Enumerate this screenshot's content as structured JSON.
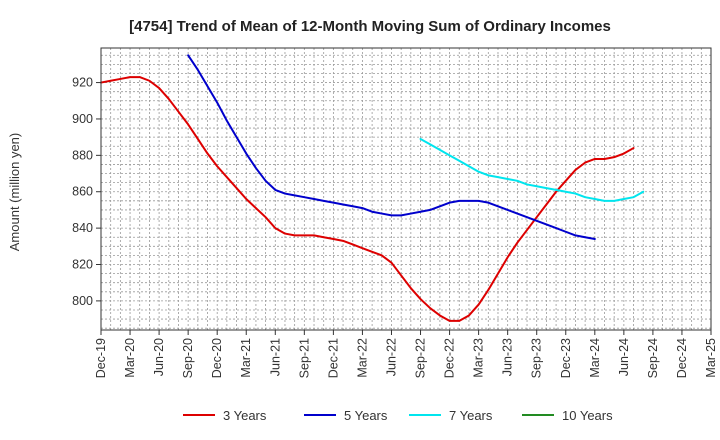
{
  "chart_data": {
    "type": "line",
    "title": "[4754]  Trend of Mean of 12-Month Moving Sum of Ordinary Incomes",
    "xlabel": "",
    "ylabel": "Amount (million yen)",
    "x_ticks": [
      "Dec-19",
      "Mar-20",
      "Jun-20",
      "Sep-20",
      "Dec-20",
      "Mar-21",
      "Jun-21",
      "Sep-21",
      "Dec-21",
      "Mar-22",
      "Jun-22",
      "Sep-22",
      "Dec-22",
      "Mar-23",
      "Jun-23",
      "Sep-23",
      "Dec-23",
      "Mar-24",
      "Jun-24",
      "Sep-24",
      "Dec-24",
      "Mar-25"
    ],
    "y_ticks": [
      800,
      820,
      840,
      860,
      880,
      900,
      920
    ],
    "ylim": [
      784,
      939
    ],
    "grid": true,
    "legend_position": "bottom",
    "series": [
      {
        "name": "3 Years",
        "color": "#dd0000",
        "start_index": 0,
        "values": [
          920,
          921,
          922,
          923,
          923,
          921,
          917,
          911,
          904,
          897,
          889,
          881,
          874,
          868,
          862,
          856,
          851,
          846,
          840,
          837,
          836,
          836,
          836,
          835,
          834,
          833,
          831,
          829,
          827,
          825,
          821,
          814,
          807,
          801,
          796,
          792,
          789,
          789,
          792,
          798,
          806,
          815,
          824,
          832,
          839,
          846,
          853,
          860,
          866,
          872,
          876,
          878,
          878,
          879,
          881,
          884
        ]
      },
      {
        "name": "5 Years",
        "color": "#0000cc",
        "start_index": 9,
        "values": [
          935,
          927,
          918,
          909,
          899,
          890,
          881,
          873,
          866,
          861,
          859,
          858,
          857,
          856,
          855,
          854,
          853,
          852,
          851,
          849,
          848,
          847,
          847,
          848,
          849,
          850,
          852,
          854,
          855,
          855,
          855,
          854,
          852,
          850,
          848,
          846,
          844,
          842,
          840,
          838,
          836,
          835,
          834
        ]
      },
      {
        "name": "7 Years",
        "color": "#00e5ee",
        "start_index": 33,
        "values": [
          889,
          886,
          883,
          880,
          877,
          874,
          871,
          869,
          868,
          867,
          866,
          864,
          863,
          862,
          861,
          860,
          859,
          857,
          856,
          855,
          855,
          856,
          857,
          860
        ]
      },
      {
        "name": "10 Years",
        "color": "#228b22",
        "start_index": 0,
        "values": []
      }
    ]
  }
}
